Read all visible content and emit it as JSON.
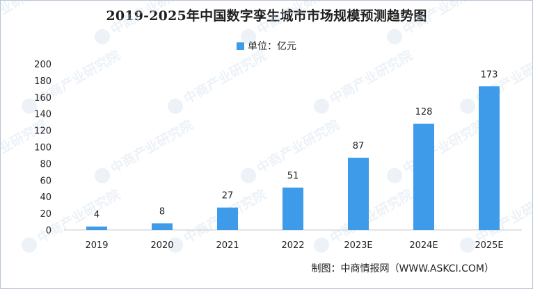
{
  "chart_data": {
    "type": "bar",
    "title": "2019-2025年中国数字孪生城市市场规模预测趋势图",
    "legend": [
      {
        "name": "单位：亿元",
        "color": "#3d9be9"
      }
    ],
    "legend_position": "top-center",
    "categories": [
      "2019",
      "2020",
      "2021",
      "2022",
      "2023E",
      "2024E",
      "2025E"
    ],
    "series": [
      {
        "name": "单位：亿元",
        "values": [
          4,
          8,
          27,
          51,
          87,
          128,
          173
        ]
      }
    ],
    "data_labels": [
      "4",
      "8",
      "27",
      "51",
      "87",
      "128",
      "173"
    ],
    "y_ticks": [
      "0",
      "20",
      "40",
      "60",
      "80",
      "100",
      "120",
      "140",
      "160",
      "180",
      "200"
    ],
    "ylim": [
      0,
      200
    ],
    "grid": false,
    "bar_color": "#3d9be9"
  },
  "source_text": "制图：中商情报网（WWW.ASKCI.COM）",
  "watermark_text": "中商产业研究院"
}
